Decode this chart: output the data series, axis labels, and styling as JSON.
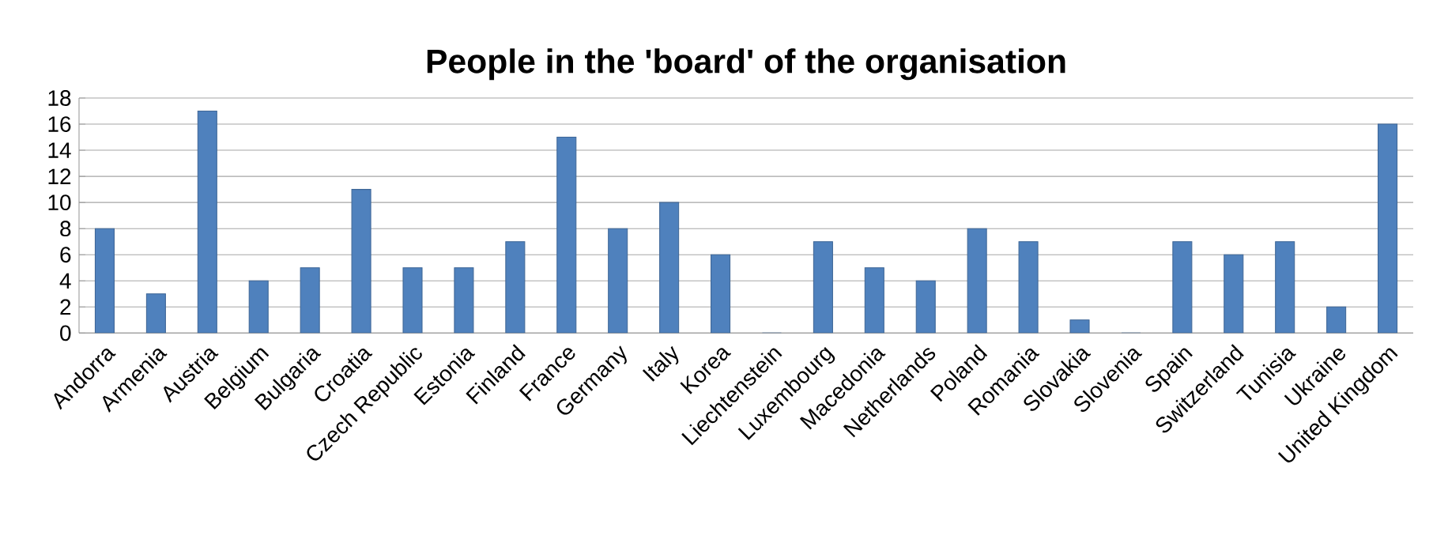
{
  "chart_data": {
    "type": "bar",
    "title": "People in the 'board' of the organisation",
    "categories": [
      "Andorra",
      "Armenia",
      "Austria",
      "Belgium",
      "Bulgaria",
      "Croatia",
      "Czech Republic",
      "Estonia",
      "Finland",
      "France",
      "Germany",
      "Italy",
      "Korea",
      "Liechtenstein",
      "Luxembourg",
      "Macedonia",
      "Netherlands",
      "Poland",
      "Romania",
      "Slovakia",
      "Slovenia",
      "Spain",
      "Switzerland",
      "Tunisia",
      "Ukraine",
      "United Kingdom"
    ],
    "values": [
      8,
      3,
      17,
      4,
      5,
      11,
      5,
      5,
      7,
      15,
      8,
      10,
      6,
      0,
      7,
      5,
      4,
      8,
      7,
      1,
      0,
      7,
      6,
      7,
      2,
      16
    ],
    "color": "#4f81bd",
    "ylim": [
      0,
      18
    ],
    "yticks": [
      0,
      2,
      4,
      6,
      8,
      10,
      12,
      14,
      16,
      18
    ],
    "grid": "y"
  }
}
